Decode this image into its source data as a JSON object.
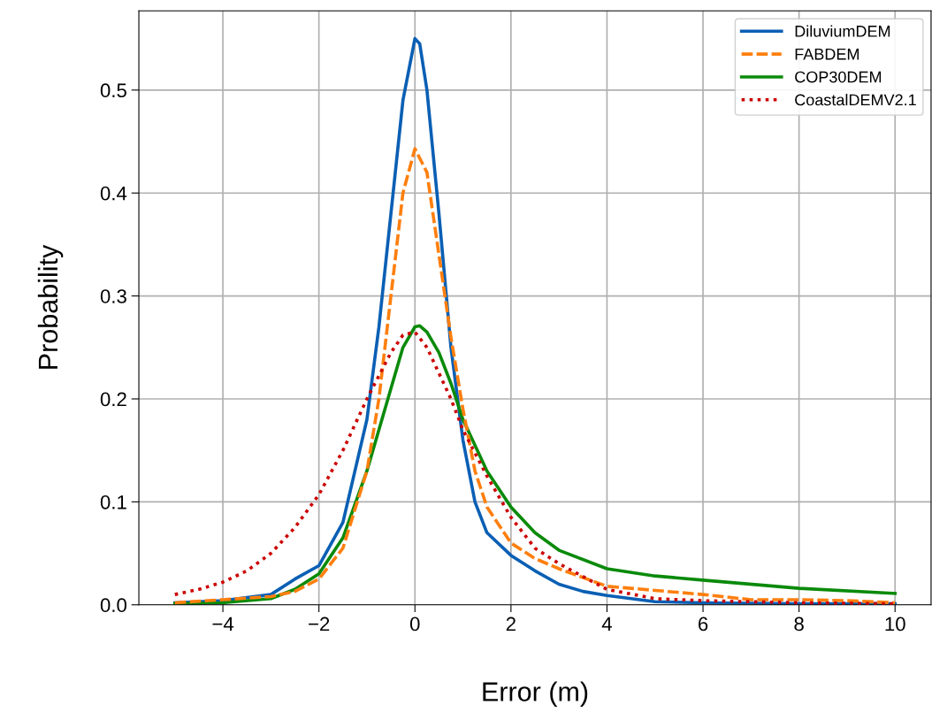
{
  "chart_data": {
    "type": "line",
    "xlabel": "Error (m)",
    "ylabel": "Probability",
    "xlim": [
      -5.75,
      10.75
    ],
    "ylim": [
      0,
      0.577
    ],
    "xticks": [
      {
        "value": -4,
        "label": "−4"
      },
      {
        "value": -2,
        "label": "−2"
      },
      0,
      2,
      4,
      6,
      8,
      10
    ],
    "yticks": [
      {
        "value": 0,
        "label": "0.0"
      },
      0.1,
      0.2,
      0.3,
      0.4,
      0.5
    ],
    "grid": true,
    "legend": "top right",
    "series": [
      {
        "name": "DiluviumDEM",
        "color": "#0a5fb4",
        "line_style": "solid",
        "x": [
          -5,
          -4,
          -3,
          -2.5,
          -2,
          -1.5,
          -1,
          -0.75,
          -0.5,
          -0.25,
          0,
          0.1,
          0.25,
          0.5,
          0.75,
          1,
          1.25,
          1.5,
          2,
          2.5,
          3,
          3.5,
          4,
          5,
          6,
          8,
          10
        ],
        "values": [
          0.002,
          0.004,
          0.01,
          0.025,
          0.038,
          0.08,
          0.18,
          0.27,
          0.38,
          0.49,
          0.55,
          0.545,
          0.5,
          0.38,
          0.25,
          0.16,
          0.1,
          0.07,
          0.048,
          0.033,
          0.02,
          0.013,
          0.009,
          0.003,
          0.002,
          0.001,
          0.001
        ]
      },
      {
        "name": "FABDEM",
        "color": "#ff7f0e",
        "line_style": "dashed",
        "x": [
          -5,
          -4,
          -3,
          -2.5,
          -2,
          -1.5,
          -1,
          -0.75,
          -0.5,
          -0.25,
          0,
          0.25,
          0.5,
          0.75,
          1,
          1.25,
          1.5,
          2,
          2.5,
          3,
          4,
          5,
          6,
          7,
          8,
          9,
          10
        ],
        "values": [
          0.002,
          0.005,
          0.008,
          0.013,
          0.025,
          0.055,
          0.13,
          0.2,
          0.3,
          0.4,
          0.443,
          0.42,
          0.34,
          0.26,
          0.19,
          0.13,
          0.095,
          0.06,
          0.045,
          0.035,
          0.018,
          0.014,
          0.01,
          0.005,
          0.005,
          0.004,
          0.002
        ]
      },
      {
        "name": "COP30DEM",
        "color": "#0a8a0a",
        "line_style": "solid",
        "x": [
          -5,
          -4,
          -3,
          -2.5,
          -2,
          -1.5,
          -1,
          -0.5,
          -0.25,
          0,
          0.1,
          0.25,
          0.5,
          0.75,
          1,
          1.5,
          2,
          2.5,
          3,
          4,
          5,
          6,
          8,
          10
        ],
        "values": [
          0.001,
          0.002,
          0.006,
          0.015,
          0.03,
          0.065,
          0.13,
          0.21,
          0.25,
          0.27,
          0.271,
          0.265,
          0.245,
          0.215,
          0.18,
          0.13,
          0.095,
          0.07,
          0.053,
          0.035,
          0.028,
          0.024,
          0.016,
          0.011
        ]
      },
      {
        "name": "CoastalDEMV2.1",
        "color": "#cc0000",
        "line_style": "dotted",
        "x": [
          -5,
          -4.5,
          -4,
          -3.5,
          -3,
          -2.5,
          -2,
          -1.5,
          -1,
          -0.5,
          -0.25,
          0,
          0.25,
          0.5,
          0.75,
          1,
          1.5,
          2,
          2.5,
          3,
          4,
          5,
          6,
          8,
          10
        ],
        "values": [
          0.01,
          0.015,
          0.022,
          0.033,
          0.05,
          0.075,
          0.107,
          0.15,
          0.2,
          0.245,
          0.262,
          0.265,
          0.25,
          0.225,
          0.2,
          0.17,
          0.125,
          0.085,
          0.055,
          0.04,
          0.015,
          0.006,
          0.004,
          0.002,
          0.001
        ]
      }
    ]
  }
}
